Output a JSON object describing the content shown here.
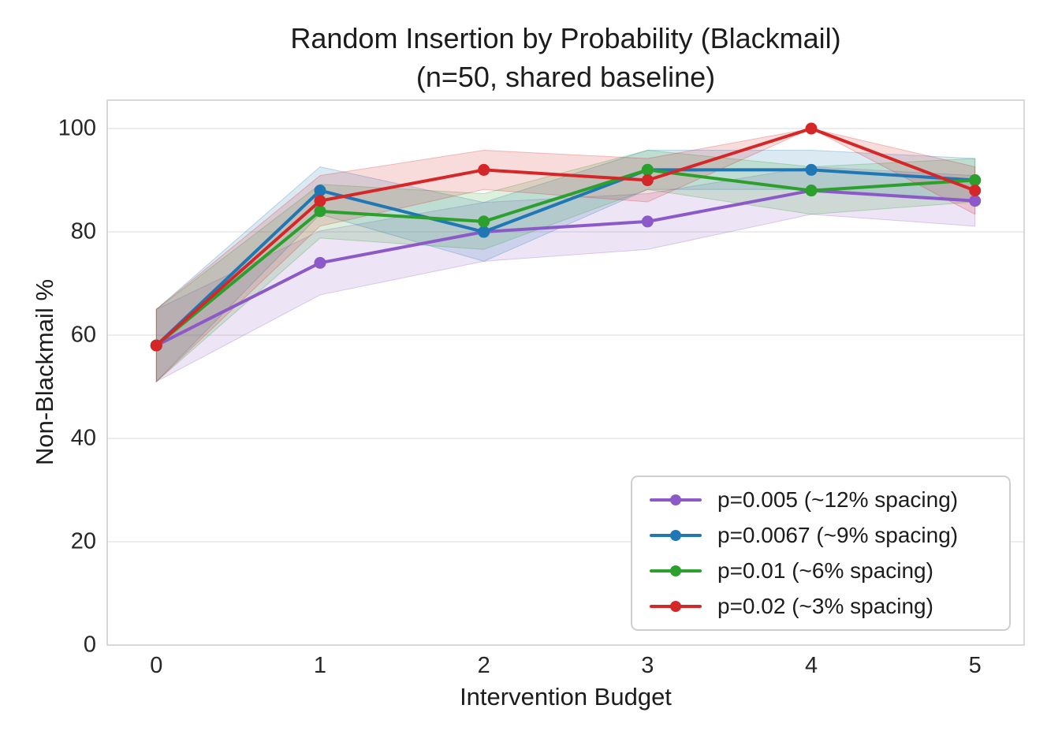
{
  "figure": {
    "background": "#ffffff"
  },
  "colors": {
    "grid": "#e7e7e7",
    "spine": "#cccccc",
    "text": "#262626"
  },
  "chart_data": {
    "type": "line",
    "title_line1": "Random Insertion by Probability (Blackmail)",
    "title_line2": "(n=50, shared baseline)",
    "xlabel": "Intervention Budget",
    "ylabel": "Non-Blackmail %",
    "x": [
      0,
      1,
      2,
      3,
      4,
      5
    ],
    "xticks": [
      0,
      1,
      2,
      3,
      4,
      5
    ],
    "yticks": [
      0,
      20,
      40,
      60,
      80,
      100
    ],
    "xlim": [
      -0.3,
      5.3
    ],
    "ylim": [
      0,
      105.5
    ],
    "grid": "horizontal",
    "legend_position": "lower right",
    "series": [
      {
        "name": "p=0.005 (~12% spacing)",
        "color": "#8c5ac8",
        "values": [
          58,
          74,
          80,
          82,
          88,
          86
        ],
        "lower": [
          51.0,
          67.8,
          74.3,
          76.6,
          83.4,
          81.1
        ],
        "upper": [
          65.0,
          80.2,
          85.7,
          87.4,
          92.6,
          90.9
        ]
      },
      {
        "name": "p=0.0067 (~9% spacing)",
        "color": "#2077b4",
        "values": [
          58,
          88,
          80,
          92,
          92,
          90
        ],
        "lower": [
          51.0,
          83.4,
          74.3,
          88.2,
          88.2,
          85.8
        ],
        "upper": [
          65.0,
          92.6,
          85.7,
          95.8,
          95.8,
          94.2
        ]
      },
      {
        "name": "p=0.01 (~6% spacing)",
        "color": "#2ca02c",
        "values": [
          58,
          84,
          82,
          92,
          88,
          90
        ],
        "lower": [
          51.0,
          78.8,
          76.6,
          88.2,
          83.4,
          85.8
        ],
        "upper": [
          65.0,
          89.2,
          87.4,
          95.8,
          92.6,
          94.2
        ]
      },
      {
        "name": "p=0.02 (~3% spacing)",
        "color": "#d62728",
        "values": [
          58,
          86,
          92,
          90,
          100,
          88
        ],
        "lower": [
          51.0,
          81.1,
          88.2,
          85.8,
          100.0,
          83.4
        ],
        "upper": [
          65.0,
          90.9,
          95.8,
          94.2,
          100.0,
          92.6
        ]
      }
    ]
  }
}
